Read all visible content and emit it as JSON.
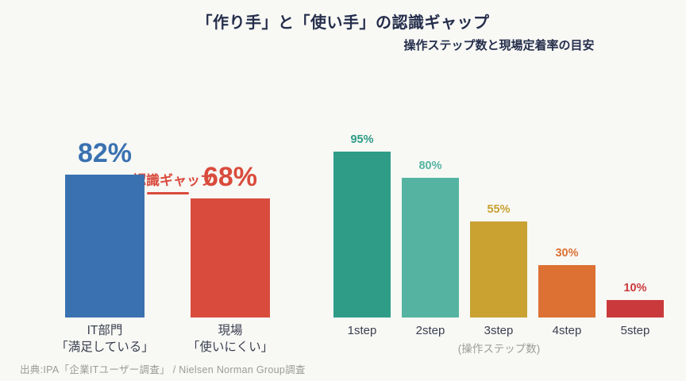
{
  "page": {
    "title": "「作り手」と「使い手」の認識ギャップ",
    "subtitle": "操作ステップ数と現場定着率の目安",
    "source": "出典:IPA「企業ITユーザー調査」 / Nielsen Norman Group調査"
  },
  "colors": {
    "background": "#f8f8f5",
    "heading": "#252e4c",
    "label": "#3b4050",
    "muted": "#9b9b97",
    "accent_red": "#d94b3c"
  },
  "chart_data": [
    {
      "type": "bar",
      "title": "「作り手」と「使い手」の認識ギャップ",
      "categories": [
        "IT部門\n「満足している」",
        "現場\n「使いにくい」"
      ],
      "values": [
        82,
        68
      ],
      "value_labels": [
        "82%",
        "68%"
      ],
      "bar_colors": [
        "#3a72b1",
        "#d94b3c"
      ],
      "annotation": "認識ギャップ",
      "xlabel": "",
      "ylabel": "",
      "ylim": [
        0,
        100
      ],
      "grid": false,
      "legend": false
    },
    {
      "type": "bar",
      "title": "操作ステップ数と現場定着率の目安",
      "categories": [
        "1step",
        "2step",
        "3step",
        "4step",
        "5step"
      ],
      "values": [
        95,
        80,
        55,
        30,
        10
      ],
      "value_labels": [
        "95%",
        "80%",
        "55%",
        "30%",
        "10%"
      ],
      "bar_colors": [
        "#2e9c87",
        "#54b4a1",
        "#c9a232",
        "#dc7133",
        "#ca3a3c"
      ],
      "xlabel": "(操作ステップ数)",
      "ylabel": "",
      "ylim": [
        0,
        100
      ],
      "grid": false,
      "legend": false
    }
  ]
}
